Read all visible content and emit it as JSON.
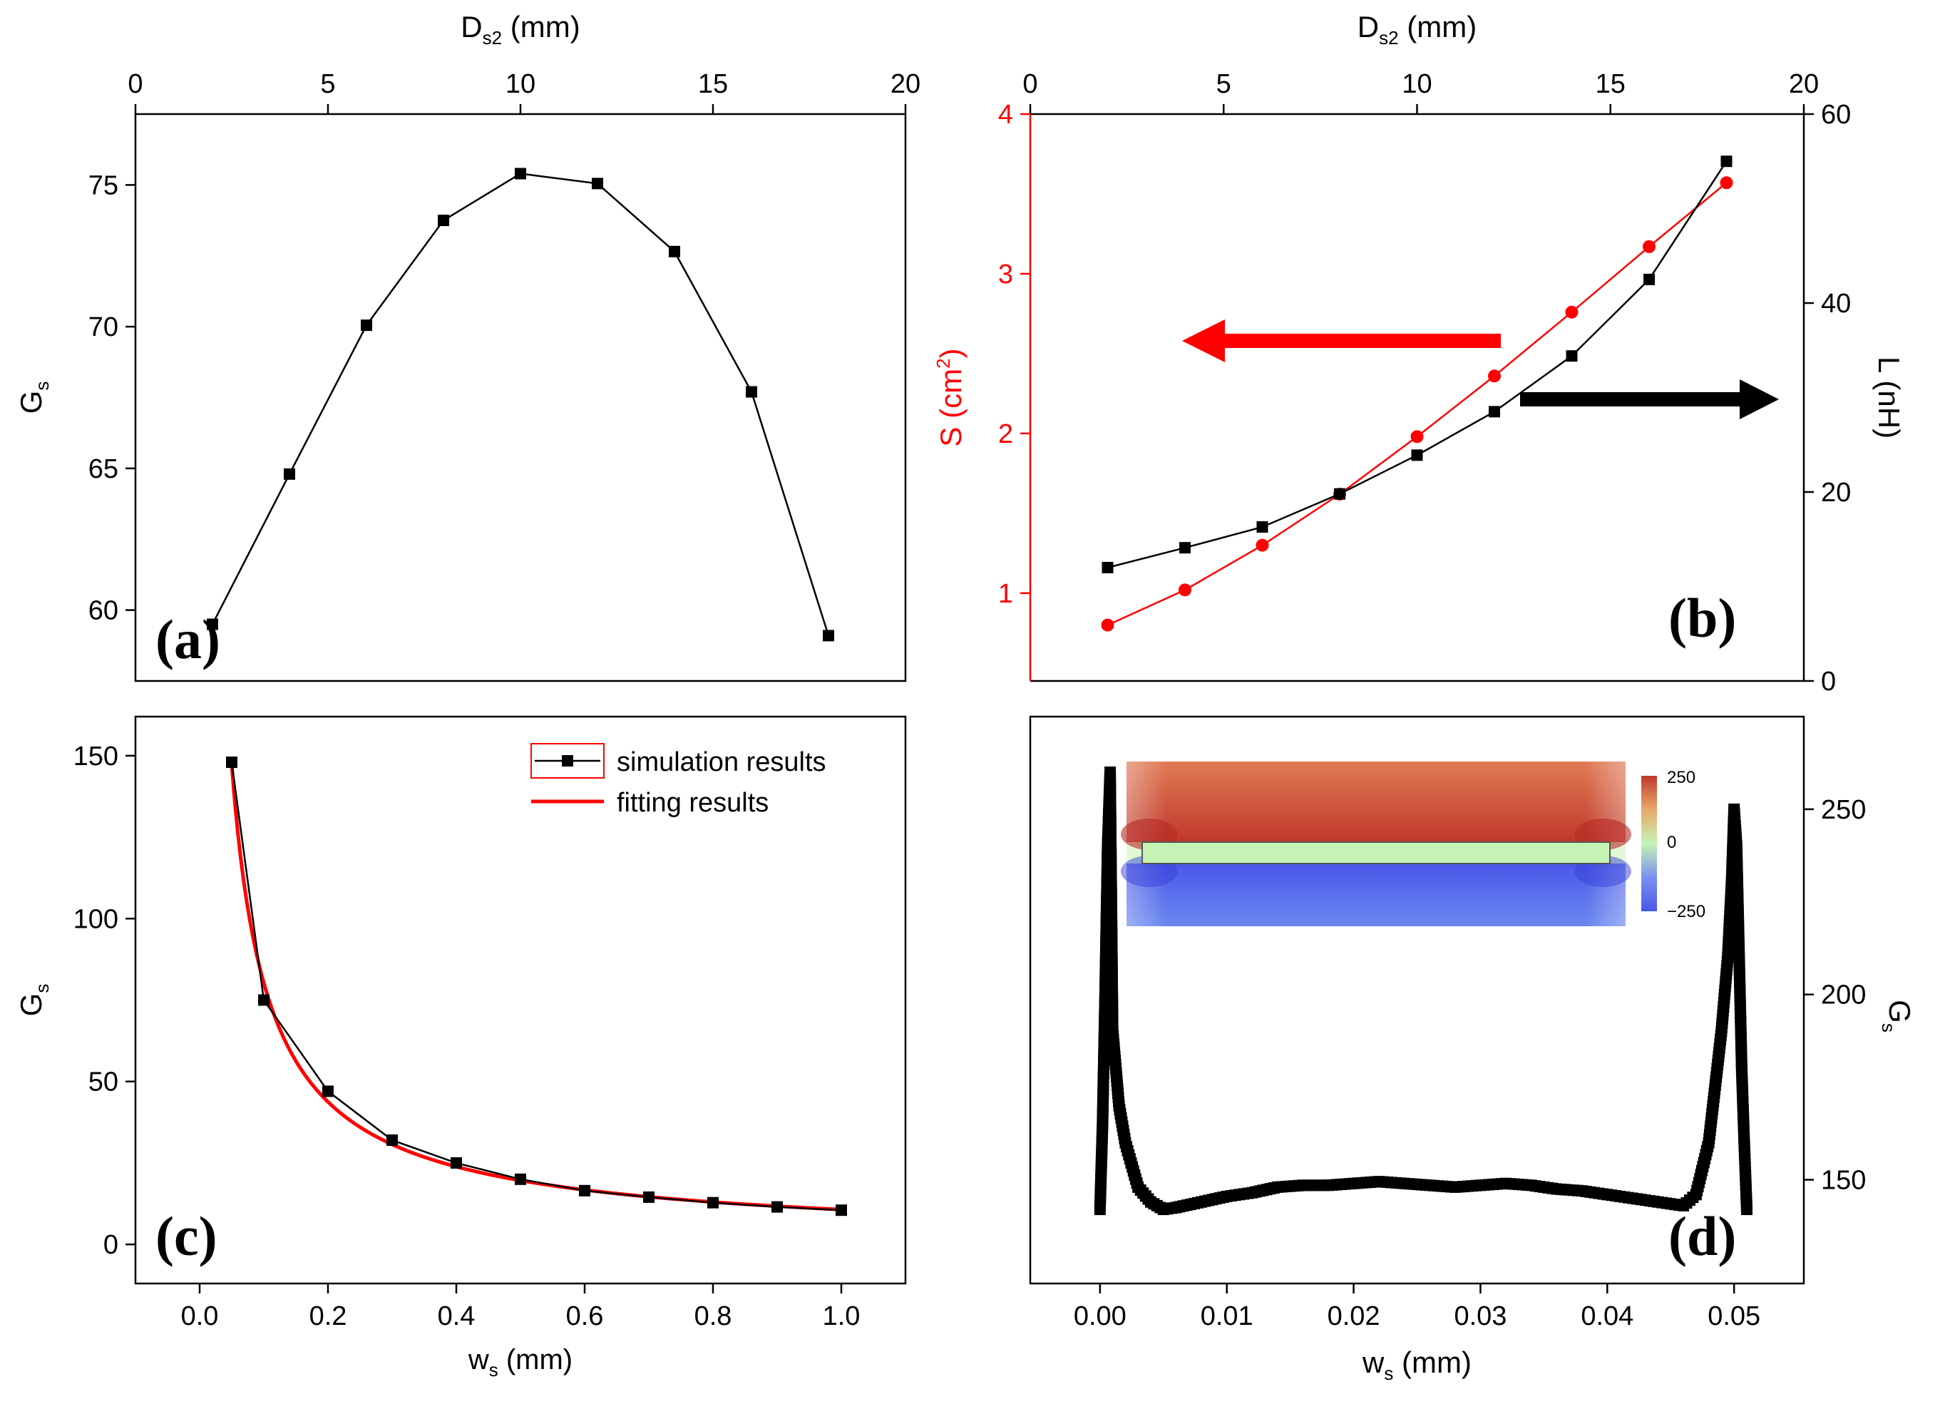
{
  "chart_data": [
    {
      "panel": "(a)",
      "type": "line",
      "x_top_label_main": "D",
      "x_top_label_sub": "s2",
      "x_top_label_unit": " (mm)",
      "y_label_main": "G",
      "y_label_sub": "s",
      "xlim": [
        0,
        20
      ],
      "ylim": [
        57.5,
        77.5
      ],
      "x_ticks": [
        "0",
        "5",
        "10",
        "15",
        "20"
      ],
      "y_ticks": [
        "60",
        "65",
        "70",
        "75"
      ],
      "series": [
        {
          "color": "#000000",
          "marker": "square",
          "x": [
            2,
            4,
            6,
            8,
            10,
            12,
            14,
            16,
            18
          ],
          "y": [
            59.5,
            64.8,
            70.05,
            73.75,
            75.4,
            75.05,
            72.65,
            67.7,
            59.1
          ]
        }
      ]
    },
    {
      "panel": "(b)",
      "type": "line",
      "x_top_label_main": "D",
      "x_top_label_sub": "s2",
      "x_top_label_unit": " (mm)",
      "y_left_label_main": "S (cm",
      "y_left_label_sup": "2",
      "y_left_label_end": ")",
      "y_right_label": "L (nH)",
      "xlim": [
        0,
        20
      ],
      "ylim_left": [
        0.45,
        4.0
      ],
      "ylim_right": [
        0,
        60
      ],
      "x_ticks": [
        "0",
        "5",
        "10",
        "15",
        "20"
      ],
      "y_left_ticks": [
        "1",
        "2",
        "3",
        "4"
      ],
      "y_right_ticks": [
        "0",
        "20",
        "40",
        "60"
      ],
      "colors": {
        "left_axis": "#ff0000",
        "right_axis": "#000000"
      },
      "series": [
        {
          "axis": "left",
          "color": "#ff0000",
          "marker": "circle",
          "x": [
            2,
            4,
            6,
            8,
            10,
            12,
            14,
            16,
            18
          ],
          "y": [
            0.8,
            1.02,
            1.3,
            1.62,
            1.98,
            2.36,
            2.76,
            3.17,
            3.57
          ]
        },
        {
          "axis": "right",
          "color": "#000000",
          "marker": "square",
          "x": [
            2,
            4,
            6,
            8,
            10,
            12,
            14,
            16,
            18
          ],
          "y": [
            12,
            14.1,
            16.3,
            19.8,
            23.9,
            28.5,
            34.4,
            42.5,
            55
          ]
        }
      ],
      "annotations": [
        {
          "type": "arrow",
          "direction": "left",
          "color": "#ff0000"
        },
        {
          "type": "arrow",
          "direction": "right",
          "color": "#000000"
        }
      ]
    },
    {
      "panel": "(c)",
      "type": "line",
      "x_label_main": "w",
      "x_label_sub": "s",
      "x_label_unit": " (mm)",
      "y_label_main": "G",
      "y_label_sub": "s",
      "xlim": [
        -0.1,
        1.1
      ],
      "ylim": [
        -12,
        162
      ],
      "x_ticks": [
        "0.0",
        "0.2",
        "0.4",
        "0.6",
        "0.8",
        "1.0"
      ],
      "y_ticks": [
        "0",
        "50",
        "100",
        "150"
      ],
      "legend": {
        "position": "top-right",
        "items": [
          "simulation results",
          "fitting results"
        ]
      },
      "series": [
        {
          "name": "simulation results",
          "color": "#000000",
          "marker": "square",
          "x": [
            0.05,
            0.1,
            0.2,
            0.3,
            0.4,
            0.5,
            0.6,
            0.7,
            0.8,
            0.9,
            1.0
          ],
          "y": [
            148,
            75,
            47,
            32,
            25,
            20,
            16.5,
            14.5,
            12.8,
            11.5,
            10.5
          ]
        },
        {
          "name": "fitting results",
          "color": "#ff0000",
          "marker": "none",
          "fit": "power",
          "fit_a": 10.7,
          "fit_b": -0.875,
          "x_range": [
            0.05,
            1.0
          ]
        }
      ]
    },
    {
      "panel": "(d)",
      "type": "scatter",
      "x_label_main": "w",
      "x_label_sub": "s",
      "x_label_unit": " (mm)",
      "y_label_main": "G",
      "y_label_sub": "s",
      "xlim": [
        -0.0055,
        0.0555
      ],
      "ylim": [
        122,
        275
      ],
      "x_ticks": [
        "0.00",
        "0.01",
        "0.02",
        "0.03",
        "0.04",
        "0.05"
      ],
      "y_ticks": [
        "150",
        "200",
        "250"
      ],
      "series": [
        {
          "color": "#000000",
          "marker": "square",
          "profile": [
            [
              0.0,
              142
            ],
            [
              0.0002,
              165
            ],
            [
              0.0004,
              200
            ],
            [
              0.0006,
              240
            ],
            [
              0.0008,
              260
            ],
            [
              0.001,
              190
            ],
            [
              0.0015,
              170
            ],
            [
              0.002,
              160
            ],
            [
              0.003,
              148
            ],
            [
              0.004,
              144
            ],
            [
              0.005,
              142
            ],
            [
              0.006,
              142.5
            ],
            [
              0.008,
              144
            ],
            [
              0.01,
              145.5
            ],
            [
              0.012,
              146.5
            ],
            [
              0.014,
              148
            ],
            [
              0.016,
              148.5
            ],
            [
              0.018,
              148.5
            ],
            [
              0.02,
              149
            ],
            [
              0.022,
              149.5
            ],
            [
              0.024,
              149
            ],
            [
              0.026,
              148.5
            ],
            [
              0.028,
              148
            ],
            [
              0.03,
              148.5
            ],
            [
              0.032,
              149
            ],
            [
              0.034,
              148.5
            ],
            [
              0.036,
              147.5
            ],
            [
              0.038,
              147
            ],
            [
              0.04,
              146
            ],
            [
              0.042,
              145
            ],
            [
              0.044,
              144
            ],
            [
              0.046,
              143
            ],
            [
              0.047,
              146
            ],
            [
              0.048,
              160
            ],
            [
              0.049,
              190
            ],
            [
              0.0495,
              210
            ],
            [
              0.0498,
              230
            ],
            [
              0.05,
              250
            ],
            [
              0.0502,
              240
            ],
            [
              0.0504,
              210
            ],
            [
              0.0506,
              180
            ],
            [
              0.0508,
              160
            ],
            [
              0.051,
              142
            ]
          ]
        }
      ],
      "inset": {
        "type": "field-colormap",
        "colorbar_ticks": [
          "250",
          "0",
          "−250"
        ],
        "colors": [
          "#c0392b",
          "#e8a96a",
          "#c6f3b5",
          "#7d8ff0",
          "#4a57e8"
        ]
      }
    }
  ]
}
